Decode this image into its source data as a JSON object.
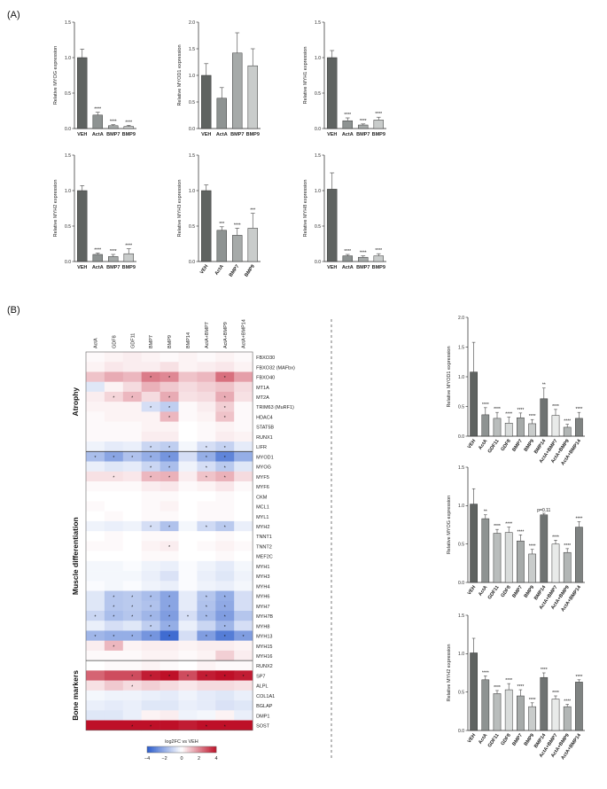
{
  "panel_labels": {
    "a": "(A)",
    "b": "(B)"
  },
  "chart_data": [
    {
      "type": "bar",
      "id": "myog_a",
      "ylabel": "Relative MYOG expression",
      "ylim": [
        0,
        1.5
      ],
      "yticks": [
        "0.0",
        "0.5",
        "1.0",
        "1.5"
      ],
      "tickvals": [
        0,
        0.5,
        1.0,
        1.5
      ],
      "categories": [
        "VEH",
        "ActA",
        "BMP7",
        "BMP9"
      ],
      "values": [
        1.0,
        0.19,
        0.04,
        0.03
      ],
      "errors": [
        0.12,
        0.04,
        0.015,
        0.015
      ],
      "stars": [
        "",
        "****",
        "****",
        "****"
      ]
    },
    {
      "type": "bar",
      "id": "myod1_a",
      "ylabel": "Relative MYOD1 expression",
      "ylim": [
        0,
        2.0
      ],
      "yticks": [
        "0.0",
        "0.5",
        "1.0",
        "1.5",
        "2.0"
      ],
      "tickvals": [
        0,
        0.5,
        1.0,
        1.5,
        2.0
      ],
      "categories": [
        "VEH",
        "ActA",
        "BMP7",
        "BMP9"
      ],
      "values": [
        1.0,
        0.57,
        1.42,
        1.18
      ],
      "errors": [
        0.22,
        0.2,
        0.38,
        0.32
      ],
      "stars": [
        "",
        "",
        "",
        ""
      ]
    },
    {
      "type": "bar",
      "id": "myh1_a",
      "ylabel": "Relative MYH1 expression",
      "ylim": [
        0,
        1.5
      ],
      "yticks": [
        "0.0",
        "0.5",
        "1.0",
        "1.5"
      ],
      "tickvals": [
        0,
        0.5,
        1.0,
        1.5
      ],
      "categories": [
        "VEH",
        "ActA",
        "BMP7",
        "BMP9"
      ],
      "values": [
        1.0,
        0.11,
        0.05,
        0.12
      ],
      "errors": [
        0.1,
        0.04,
        0.015,
        0.04
      ],
      "stars": [
        "",
        "****",
        "****",
        "****"
      ]
    },
    {
      "type": "bar",
      "id": "myh2_a",
      "ylabel": "Relative MYH2 expression",
      "ylim": [
        0,
        1.5
      ],
      "yticks": [
        "0.0",
        "0.5",
        "1.0",
        "1.5"
      ],
      "tickvals": [
        0,
        0.5,
        1.0,
        1.5
      ],
      "categories": [
        "VEH",
        "ActA",
        "BMP7",
        "BMP9"
      ],
      "values": [
        1.0,
        0.1,
        0.07,
        0.11
      ],
      "errors": [
        0.07,
        0.02,
        0.03,
        0.07
      ],
      "stars": [
        "",
        "****",
        "****",
        "****"
      ]
    },
    {
      "type": "bar",
      "id": "myh3_a",
      "ylabel": "Relative MYH3 expression",
      "ylim": [
        0,
        1.5
      ],
      "yticks": [
        "0.0",
        "0.5",
        "1.0",
        "1.5"
      ],
      "tickvals": [
        0,
        0.5,
        1.0,
        1.5
      ],
      "categories": [
        "VEH",
        "ActA",
        "BMP7",
        "BMP9"
      ],
      "values": [
        1.0,
        0.44,
        0.37,
        0.47
      ],
      "errors": [
        0.08,
        0.05,
        0.1,
        0.21
      ],
      "stars": [
        "",
        "***",
        "****",
        "***"
      ]
    },
    {
      "type": "bar",
      "id": "myh8_a",
      "ylabel": "Relative MYH8 expression",
      "ylim": [
        0,
        1.5
      ],
      "yticks": [
        "0.0",
        "0.5",
        "1.0",
        "1.5"
      ],
      "tickvals": [
        0,
        0.5,
        1.0,
        1.5
      ],
      "categories": [
        "VEH",
        "ActA",
        "BMP7",
        "BMP9"
      ],
      "values": [
        1.02,
        0.08,
        0.06,
        0.08
      ],
      "errors": [
        0.23,
        0.02,
        0.02,
        0.03
      ],
      "stars": [
        "",
        "****",
        "****",
        "****"
      ]
    },
    {
      "type": "bar",
      "id": "myod1_b",
      "ylabel": "Relative MYOD1 expression",
      "ylim": [
        0,
        2.0
      ],
      "yticks": [
        "0.0",
        "0.5",
        "1.0",
        "1.5",
        "2.0"
      ],
      "tickvals": [
        0,
        0.5,
        1.0,
        1.5,
        2.0
      ],
      "categories": [
        "VEH",
        "ActA",
        "GDF11",
        "GDF8",
        "BMP7",
        "BMP9",
        "BMP14",
        "ActA+BMP7",
        "ActA+BMP9",
        "ActA+BMP14"
      ],
      "values": [
        1.08,
        0.36,
        0.3,
        0.22,
        0.31,
        0.21,
        0.63,
        0.35,
        0.15,
        0.3
      ],
      "errors": [
        0.5,
        0.12,
        0.1,
        0.1,
        0.08,
        0.07,
        0.18,
        0.1,
        0.05,
        0.1
      ],
      "stars": [
        "",
        "****",
        "****",
        "****",
        "****",
        "****",
        "**",
        "****",
        "****",
        "****"
      ]
    },
    {
      "type": "bar",
      "id": "myog_b",
      "ylabel": "Relative MYOG expression",
      "ylim": [
        0,
        1.5
      ],
      "yticks": [
        "0.0",
        "0.5",
        "1.0",
        "1.5"
      ],
      "tickvals": [
        0,
        0.5,
        1.0,
        1.5
      ],
      "categories": [
        "VEH",
        "ActA",
        "GDF11",
        "GDF8",
        "BMP7",
        "BMP9",
        "BMP14",
        "ActA+BMP7",
        "ActA+BMP9",
        "ActA+BMP14"
      ],
      "values": [
        1.02,
        0.83,
        0.64,
        0.65,
        0.54,
        0.37,
        0.88,
        0.5,
        0.39,
        0.72
      ],
      "errors": [
        0.2,
        0.05,
        0.05,
        0.07,
        0.08,
        0.06,
        0.02,
        0.05,
        0.05,
        0.07
      ],
      "stars": [
        "",
        "**",
        "****",
        "****",
        "****",
        "****",
        "p=0.11",
        "****",
        "****",
        "****"
      ]
    },
    {
      "type": "bar",
      "id": "myh2_b",
      "ylabel": "Relative MYH2 expression",
      "ylim": [
        0,
        1.5
      ],
      "yticks": [
        "0.0",
        "0.5",
        "1.0",
        "1.5"
      ],
      "tickvals": [
        0,
        0.5,
        1.0,
        1.5
      ],
      "categories": [
        "VEH",
        "ActA",
        "GDF11",
        "GDF8",
        "BMP7",
        "BMP9",
        "BMP14",
        "ActA+BMP7",
        "ActA+BMP9",
        "ActA+BMP14"
      ],
      "values": [
        1.01,
        0.66,
        0.48,
        0.53,
        0.45,
        0.31,
        0.69,
        0.41,
        0.31,
        0.63
      ],
      "errors": [
        0.19,
        0.05,
        0.04,
        0.08,
        0.08,
        0.05,
        0.06,
        0.04,
        0.03,
        0.03
      ],
      "stars": [
        "",
        "****",
        "****",
        "****",
        "****",
        "****",
        "****",
        "****",
        "****",
        "****"
      ]
    },
    {
      "type": "heatmap",
      "id": "heatmap",
      "columns": [
        "ActA",
        "GDF8",
        "GDF11",
        "BMP7",
        "BMP9",
        "BMP14",
        "ActA+BMP7",
        "ActA+BMP9",
        "ActA+BMP14"
      ],
      "rows": [
        "FBXO30",
        "FBXO32 (MAFbx)",
        "FBXO40",
        "MT1A",
        "MT2A",
        "TRIM63 (MuRF1)",
        "HDAC4",
        "STAT5B",
        "RUNX1",
        "LIFR",
        "MYOD1",
        "MYOG",
        "MYF5",
        "MYF6",
        "CKM",
        "MCL1",
        "MYL1",
        "MYH2",
        "TNNT1",
        "TNNT2",
        "MEF2C",
        "MYH1",
        "MYH3",
        "MYH4",
        "MYH6",
        "MYH7",
        "MYH7B",
        "MYH8",
        "MYH13",
        "MYH15",
        "MYH16",
        "RUNX2",
        "SP7",
        "ALPL",
        "COL1A1",
        "BGLAP",
        "DMP1",
        "SOST"
      ],
      "groups": [
        {
          "name": "Atrophy",
          "start": 0,
          "end": 9
        },
        {
          "name": "Muscle differentiation",
          "start": 10,
          "end": 30
        },
        {
          "name": "Bone markers",
          "start": 31,
          "end": 37
        }
      ],
      "values": [
        [
          0.1,
          0.2,
          0.3,
          0.2,
          0.1,
          0.2,
          0.1,
          0.2,
          0.1
        ],
        [
          0.2,
          0.4,
          0.3,
          0.3,
          0.5,
          0.2,
          0.3,
          0.4,
          0.2
        ],
        [
          1.0,
          1.4,
          1.2,
          2.2,
          2.0,
          1.0,
          1.2,
          2.4,
          1.6
        ],
        [
          -0.6,
          0.2,
          0.6,
          1.3,
          0.9,
          0.6,
          0.8,
          1.0,
          0.6
        ],
        [
          0.3,
          0.7,
          1.2,
          0.6,
          1.4,
          0.5,
          0.6,
          1.4,
          0.5
        ],
        [
          0.2,
          0.2,
          0.2,
          -0.8,
          -1.2,
          0.1,
          0.3,
          0.8,
          0.1
        ],
        [
          0.1,
          0.2,
          0.2,
          0.2,
          1.2,
          0.1,
          0.2,
          1.0,
          0.1
        ],
        [
          0.1,
          0.1,
          0.1,
          0.2,
          0.2,
          0.0,
          0.1,
          0.2,
          0.1
        ],
        [
          0.1,
          0.1,
          0.1,
          0.3,
          0.3,
          0.0,
          0.1,
          0.3,
          0.2
        ],
        [
          -0.3,
          -0.5,
          -0.4,
          -1.0,
          -1.2,
          -0.2,
          -0.8,
          -1.1,
          -0.5
        ],
        [
          -1.6,
          -2.2,
          -1.5,
          -2.0,
          -2.6,
          -0.8,
          -2.0,
          -3.0,
          -2.0
        ],
        [
          -0.4,
          -0.6,
          -0.5,
          -1.0,
          -1.6,
          -0.3,
          -0.8,
          -1.3,
          -0.6
        ],
        [
          0.5,
          0.5,
          0.4,
          1.2,
          1.3,
          0.3,
          1.0,
          1.3,
          0.6
        ],
        [
          0.1,
          0.1,
          0.1,
          0.3,
          0.4,
          0.1,
          0.2,
          0.4,
          0.1
        ],
        [
          0.0,
          0.0,
          0.0,
          0.1,
          0.1,
          0.0,
          0.0,
          0.1,
          0.0
        ],
        [
          0.1,
          0.0,
          0.0,
          0.1,
          0.2,
          0.0,
          0.1,
          0.1,
          0.0
        ],
        [
          0.0,
          0.1,
          0.0,
          0.1,
          0.1,
          0.0,
          0.1,
          0.1,
          0.0
        ],
        [
          -0.3,
          -0.4,
          -0.3,
          -0.8,
          -1.5,
          -0.2,
          -0.9,
          -1.3,
          -0.4
        ],
        [
          0.0,
          0.1,
          0.0,
          0.1,
          0.1,
          0.0,
          0.0,
          0.1,
          0.0
        ],
        [
          0.1,
          0.1,
          0.0,
          0.2,
          0.3,
          0.0,
          0.1,
          0.2,
          0.1
        ],
        [
          0.0,
          0.0,
          0.0,
          0.1,
          0.1,
          0.0,
          0.0,
          0.1,
          0.0
        ],
        [
          -0.2,
          -0.2,
          -0.1,
          -0.3,
          -0.4,
          -0.1,
          -0.3,
          -0.5,
          -0.2
        ],
        [
          -0.2,
          -0.2,
          -0.2,
          -0.4,
          -0.7,
          -0.1,
          -0.4,
          -0.6,
          -0.3
        ],
        [
          -0.1,
          -0.2,
          -0.1,
          -0.3,
          -0.4,
          -0.1,
          -0.3,
          -0.4,
          -0.2
        ],
        [
          -0.6,
          -1.4,
          -1.3,
          -1.6,
          -2.2,
          -0.5,
          -1.4,
          -2.0,
          -0.8
        ],
        [
          -0.6,
          -1.4,
          -1.3,
          -1.5,
          -2.2,
          -0.5,
          -1.5,
          -2.1,
          -0.8
        ],
        [
          -1.0,
          -1.6,
          -1.4,
          -1.8,
          -2.4,
          -0.8,
          -1.7,
          -2.4,
          -1.4
        ],
        [
          -0.4,
          -0.8,
          -0.6,
          -1.2,
          -2.0,
          -0.4,
          -1.0,
          -1.8,
          -0.8
        ],
        [
          -1.8,
          -2.0,
          -2.0,
          -2.6,
          -3.6,
          -0.8,
          -2.4,
          -3.2,
          -2.4
        ],
        [
          0.3,
          1.2,
          0.2,
          0.3,
          0.3,
          0.2,
          0.3,
          0.3,
          0.2
        ],
        [
          0.1,
          0.1,
          0.1,
          0.2,
          0.2,
          0.1,
          0.2,
          0.8,
          0.3
        ],
        [
          0.0,
          0.1,
          0.1,
          0.2,
          0.1,
          0.0,
          0.2,
          0.1,
          0.1
        ],
        [
          2.6,
          3.0,
          3.0,
          3.8,
          4.0,
          3.0,
          3.8,
          4.0,
          3.8
        ],
        [
          0.5,
          0.9,
          0.6,
          0.8,
          0.6,
          0.4,
          0.6,
          0.6,
          0.5
        ],
        [
          -0.2,
          -0.3,
          -0.3,
          -0.4,
          -0.5,
          -0.3,
          -0.5,
          -0.6,
          -0.4
        ],
        [
          -0.4,
          -0.5,
          -0.4,
          -0.6,
          -0.6,
          -0.4,
          -0.5,
          -0.7,
          -0.6
        ],
        [
          -0.6,
          -0.6,
          -0.4,
          0.2,
          0.3,
          -0.3,
          -0.2,
          0.2,
          -0.4
        ],
        [
          4.0,
          4.0,
          4.0,
          4.0,
          4.0,
          3.8,
          4.0,
          4.0,
          4.0
        ]
      ],
      "stars": [
        [],
        [],
        [
          3,
          4,
          7
        ],
        [],
        [
          1,
          2,
          4,
          7
        ],
        [
          3,
          4,
          7
        ],
        [
          4,
          7
        ],
        [],
        [],
        [
          3,
          4,
          6,
          7
        ],
        [
          0,
          1,
          2,
          3,
          4,
          6,
          7
        ],
        [
          3,
          4,
          6,
          7
        ],
        [
          1,
          3,
          4,
          6,
          7
        ],
        [],
        [],
        [],
        [],
        [
          3,
          4,
          6,
          7
        ],
        [],
        [
          4
        ],
        [],
        [],
        [],
        [],
        [
          1,
          2,
          3,
          4,
          6,
          7
        ],
        [
          1,
          2,
          3,
          4,
          6,
          7
        ],
        [
          0,
          1,
          2,
          3,
          4,
          5,
          6,
          7
        ],
        [
          3,
          4,
          7
        ],
        [
          0,
          1,
          2,
          3,
          4,
          6,
          7,
          8
        ],
        [
          1
        ],
        [],
        [],
        [
          2,
          3,
          4,
          5,
          6,
          7,
          8
        ],
        [
          2
        ],
        [],
        [],
        [],
        [
          2,
          3,
          6,
          7
        ]
      ],
      "legend": {
        "title": "log2FC vs VEH",
        "ticks": [
          "-4",
          "-2",
          "0",
          "2",
          "4"
        ],
        "min": -4,
        "max": 4
      }
    }
  ]
}
